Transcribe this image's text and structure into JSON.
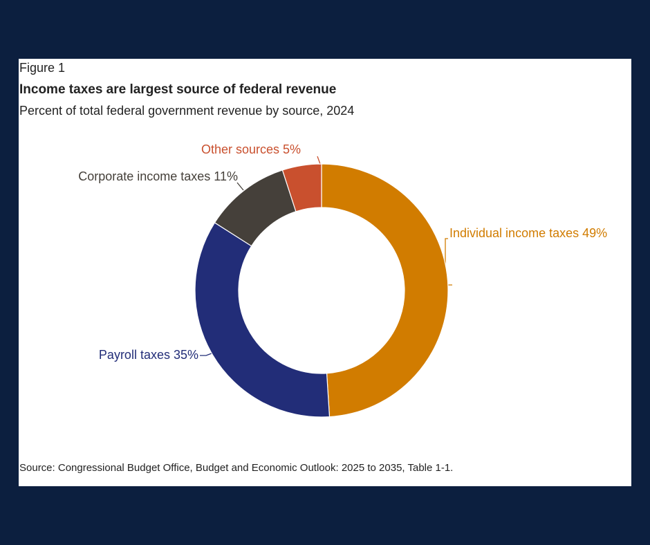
{
  "chart_data": {
    "type": "donut",
    "figure_label": "Figure 1",
    "title": "Income taxes are largest source of federal revenue",
    "subtitle": "Percent of total federal government revenue by source, 2024",
    "categories": [
      "Individual income taxes",
      "Payroll taxes",
      "Corporate income taxes",
      "Other sources"
    ],
    "values": [
      49,
      35,
      11,
      5
    ],
    "value_labels": [
      "49%",
      "35%",
      "11%",
      "5%"
    ],
    "colors": [
      "#d17c00",
      "#222d78",
      "#45403a",
      "#c9502e"
    ],
    "source": "Source: Congressional Budget Office, Budget and Economic Outlook: 2025 to 2035, Table 1-1."
  }
}
